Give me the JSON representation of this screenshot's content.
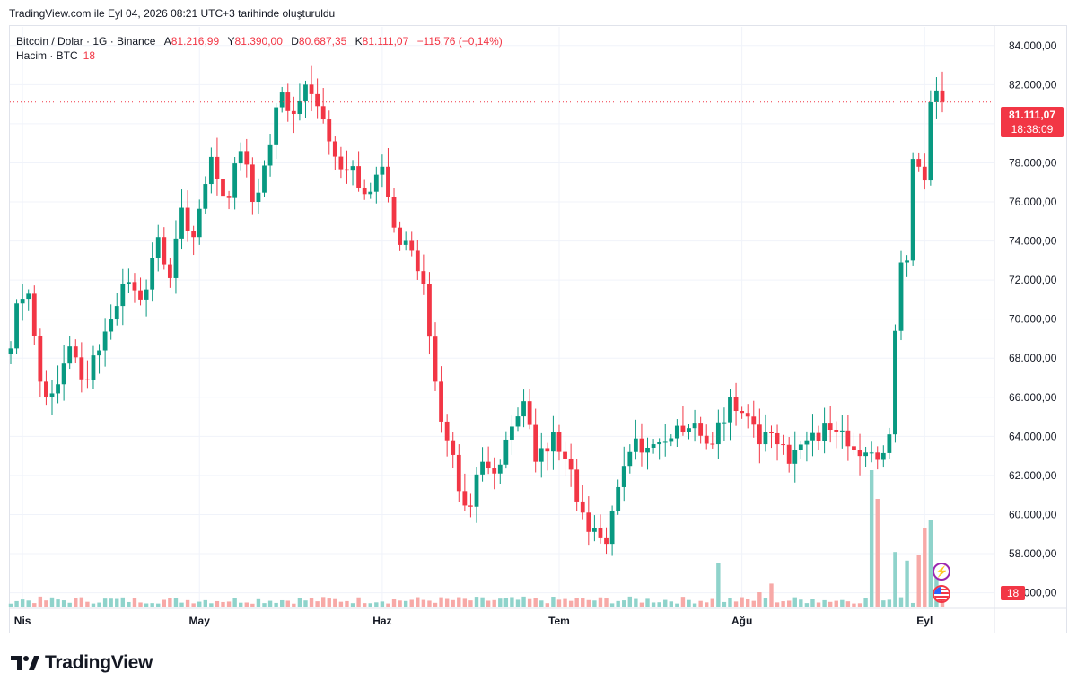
{
  "caption": "TradingView.com ile Eyl 04, 2026 08:21 UTC+3 tarihinde oluşturuldu",
  "legend": {
    "symbol": "Bitcoin / Dolar · 1G · Binance",
    "open_label": "A",
    "open": "81.216,99",
    "high_label": "Y",
    "high": "81.390,00",
    "low_label": "D",
    "low": "80.687,35",
    "close_label": "K",
    "close": "81.111,07",
    "change": "−115,76 (−0,14%)"
  },
  "volume_legend": {
    "label": "Hacim · BTC",
    "value": "18"
  },
  "price_tag": {
    "price": "81.111,07",
    "countdown": "18:38:09"
  },
  "volume_tag": "18",
  "brand": "TradingView",
  "colors": {
    "up": "#089981",
    "down": "#f23645",
    "up_volume": "#8fd3cb",
    "down_volume": "#f7a9a7",
    "grid": "#f0f3fa"
  },
  "chart_data": {
    "type": "candlestick",
    "y_ticks": [
      "84.000,00",
      "82.000,00",
      "80.000,00",
      "78.000,00",
      "76.000,00",
      "74.000,00",
      "72.000,00",
      "70.000,00",
      "68.000,00",
      "66.000,00",
      "64.000,00",
      "62.000,00",
      "60.000,00",
      "58.000,00",
      "56.000,00"
    ],
    "y_tick_values": [
      84000,
      82000,
      80000,
      78000,
      76000,
      74000,
      72000,
      70000,
      68000,
      66000,
      64000,
      62000,
      60000,
      58000,
      56000
    ],
    "x_ticks": [
      "Nis",
      "May",
      "Haz",
      "Tem",
      "Ağu",
      "Eyl"
    ],
    "x_tick_dates": [
      "2026-04-01",
      "2026-05-01",
      "2026-06-01",
      "2026-07-01",
      "2026-08-01",
      "2026-09-01"
    ],
    "date_range": [
      "2026-03-30",
      "2026-09-04"
    ],
    "ylim": [
      55200,
      85000
    ],
    "last_price": 81111.07,
    "anchors": [
      [
        "2026-03-30",
        68500
      ],
      [
        "2026-03-31",
        70800
      ],
      [
        "2026-04-02",
        71300
      ],
      [
        "2026-04-04",
        66800
      ],
      [
        "2026-04-06",
        66200
      ],
      [
        "2026-04-09",
        68600
      ],
      [
        "2026-04-12",
        66900
      ],
      [
        "2026-04-14",
        68400
      ],
      [
        "2026-04-18",
        71800
      ],
      [
        "2026-04-21",
        71000
      ],
      [
        "2026-04-24",
        74200
      ],
      [
        "2026-04-26",
        72100
      ],
      [
        "2026-04-28",
        75700
      ],
      [
        "2026-04-30",
        74200
      ],
      [
        "2026-05-03",
        78300
      ],
      [
        "2026-05-06",
        76200
      ],
      [
        "2026-05-08",
        78600
      ],
      [
        "2026-05-10",
        76000
      ],
      [
        "2026-05-13",
        78900
      ],
      [
        "2026-05-15",
        81600
      ],
      [
        "2026-05-17",
        80500
      ],
      [
        "2026-05-19",
        82000
      ],
      [
        "2026-05-21",
        80900
      ],
      [
        "2026-05-23",
        79100
      ],
      [
        "2026-05-26",
        77600
      ],
      [
        "2026-05-29",
        76400
      ],
      [
        "2026-06-01",
        77800
      ],
      [
        "2026-06-04",
        73800
      ],
      [
        "2026-06-06",
        73500
      ],
      [
        "2026-06-08",
        71800
      ],
      [
        "2026-06-10",
        66800
      ],
      [
        "2026-06-12",
        63800
      ],
      [
        "2026-06-14",
        61200
      ],
      [
        "2026-06-16",
        60400
      ],
      [
        "2026-06-18",
        62700
      ],
      [
        "2026-06-20",
        62100
      ],
      [
        "2026-06-23",
        64500
      ],
      [
        "2026-06-25",
        65800
      ],
      [
        "2026-06-27",
        62700
      ],
      [
        "2026-06-30",
        64200
      ],
      [
        "2026-07-03",
        62300
      ],
      [
        "2026-07-05",
        60100
      ],
      [
        "2026-07-07",
        59300
      ],
      [
        "2026-07-09",
        58500
      ],
      [
        "2026-07-11",
        61400
      ],
      [
        "2026-07-13",
        63200
      ],
      [
        "2026-07-17",
        63600
      ],
      [
        "2026-07-20",
        63900
      ],
      [
        "2026-07-24",
        64700
      ],
      [
        "2026-07-27",
        63600
      ],
      [
        "2026-07-30",
        66000
      ],
      [
        "2026-08-01",
        65200
      ],
      [
        "2026-08-04",
        63600
      ],
      [
        "2026-08-07",
        63600
      ],
      [
        "2026-08-09",
        62600
      ],
      [
        "2026-08-12",
        63800
      ],
      [
        "2026-08-15",
        64700
      ],
      [
        "2026-08-18",
        64300
      ],
      [
        "2026-08-21",
        63000
      ],
      [
        "2026-08-24",
        62800
      ],
      [
        "2026-08-26",
        64100
      ],
      [
        "2026-08-27",
        69400
      ],
      [
        "2026-08-28",
        72900
      ],
      [
        "2026-08-29",
        73000
      ],
      [
        "2026-08-30",
        78200
      ],
      [
        "2026-08-31",
        77800
      ],
      [
        "2026-09-01",
        77100
      ],
      [
        "2026-09-02",
        81100
      ],
      [
        "2026-09-04",
        81111
      ]
    ],
    "volume_spikes": [
      [
        "2026-07-28",
        0.3
      ],
      [
        "2026-08-04",
        0.1
      ],
      [
        "2026-08-06",
        0.16
      ],
      [
        "2026-08-13",
        0.05
      ],
      [
        "2026-08-23",
        0.95
      ],
      [
        "2026-08-24",
        0.75
      ],
      [
        "2026-08-27",
        0.38
      ],
      [
        "2026-08-29",
        0.32
      ],
      [
        "2026-08-31",
        0.36
      ],
      [
        "2026-09-01",
        0.55
      ],
      [
        "2026-09-02",
        0.6
      ],
      [
        "2026-09-03",
        0.28
      ]
    ]
  }
}
